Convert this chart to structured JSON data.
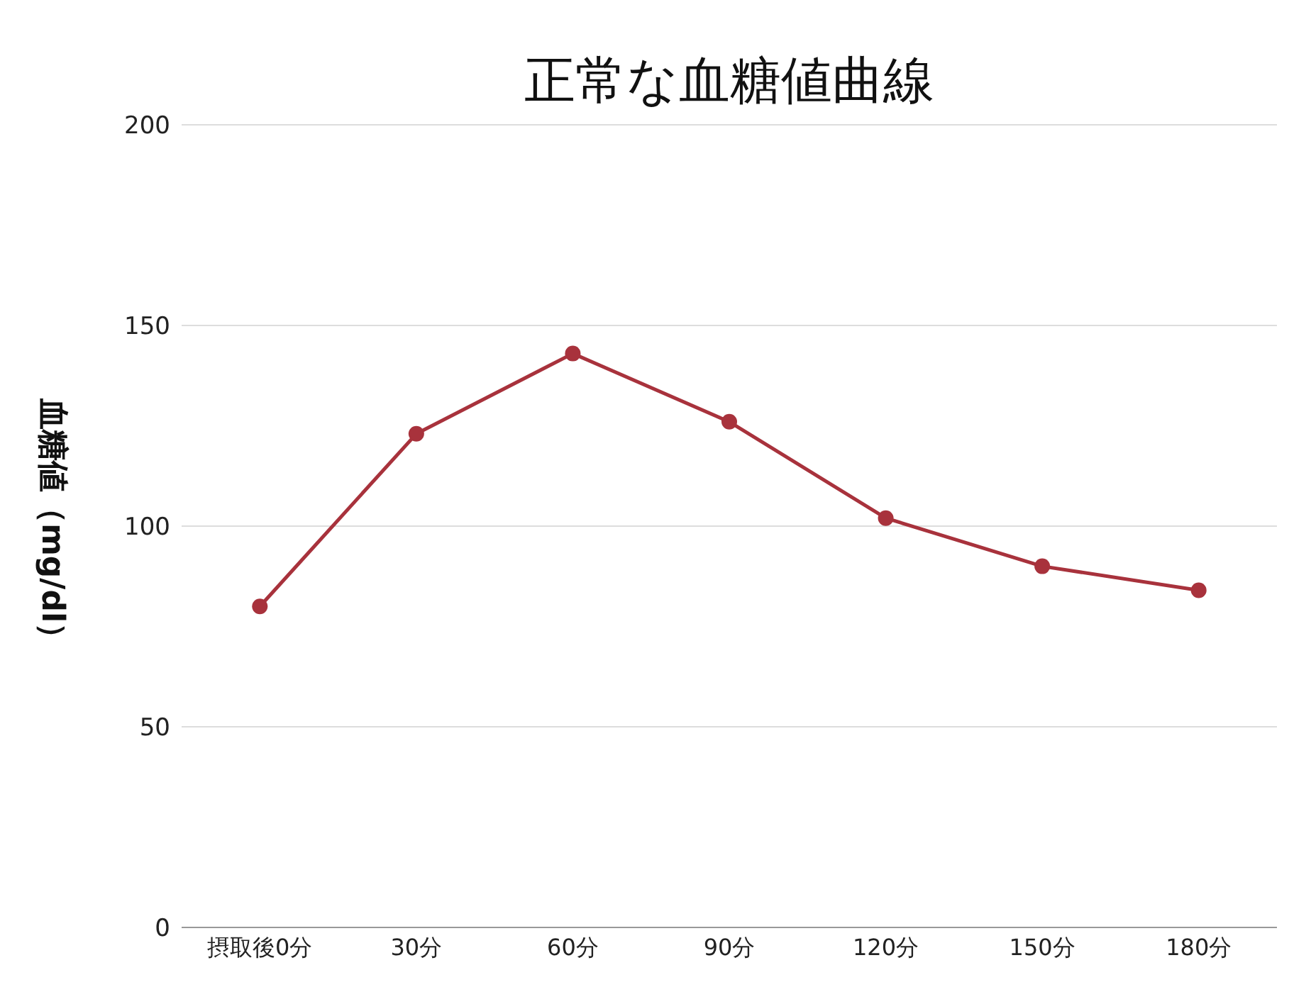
{
  "chart_data": {
    "type": "line",
    "title": "正常な血糖値曲線",
    "ylabel": "血糖値（mg/dl）",
    "categories": [
      "摂取後0分",
      "30分",
      "60分",
      "90分",
      "120分",
      "150分",
      "180分"
    ],
    "series": [
      {
        "color": "#a8323c",
        "values": [
          80,
          123,
          143,
          126,
          102,
          90,
          84
        ]
      }
    ],
    "ylim": [
      0,
      200
    ],
    "yticks": [
      0,
      50,
      100,
      150,
      200
    ],
    "grid": "y",
    "marker": "circle",
    "line_style": "solid",
    "legend": false
  }
}
